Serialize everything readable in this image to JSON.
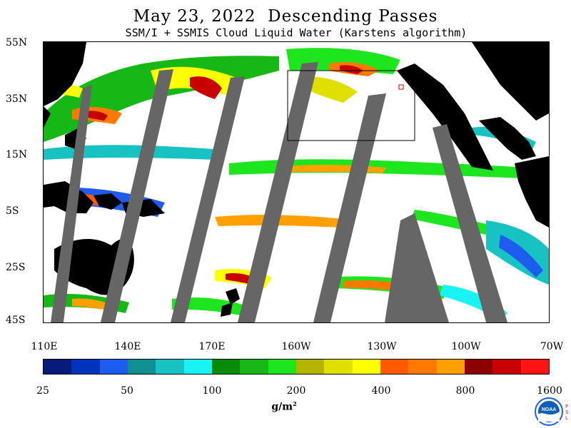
{
  "title": "May 23, 2022  Descending Passes",
  "subtitle": "SSM/I + SSMIS Cloud Liquid Water (Karstens algorithm)",
  "latitude_labels": [
    "55N",
    "35N",
    "15N",
    "5S",
    "25S",
    "45S"
  ],
  "longitude_labels": [
    "110E",
    "140E",
    "170E",
    "160W",
    "130W",
    "100W",
    "70W"
  ],
  "colorbar": {
    "tick_labels": [
      "25",
      "50",
      "100",
      "200",
      "400",
      "800",
      "1600"
    ],
    "unit": "g/m",
    "unit_superscript": "2",
    "colors": [
      "#081a7a",
      "#0033bb",
      "#1e5cf0",
      "#0f8f8f",
      "#19c2c2",
      "#19f2f2",
      "#0a8a0a",
      "#16b816",
      "#1ee61e",
      "#b4b400",
      "#e0e000",
      "#ffff00",
      "#ff5a00",
      "#ff7800",
      "#ffa000",
      "#8c0000",
      "#c80000",
      "#ff1414"
    ]
  },
  "colors": {
    "land": "#000000",
    "no_data_gap": "#666666",
    "clear": "#ffffff"
  },
  "logo": {
    "text": "NOAA",
    "side_text": [
      "P",
      "S",
      "L"
    ]
  }
}
